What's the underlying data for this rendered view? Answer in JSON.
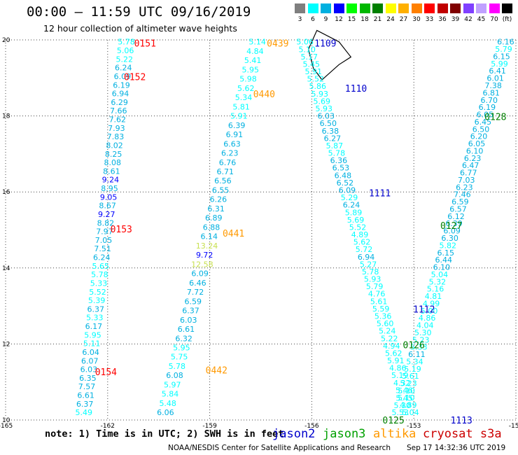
{
  "header": {
    "title": "00:00 – 11:59 UTC 09/16/2019",
    "subtitle": "12 hour collection of altimeter wave heights"
  },
  "colorbar": {
    "labels": [
      "3",
      "6",
      "9",
      "12",
      "15",
      "18",
      "21",
      "24",
      "27",
      "30",
      "33",
      "36",
      "39",
      "42",
      "45",
      "70",
      "(ft)"
    ],
    "colors": [
      "#7f7f7f",
      "#00ffff",
      "#00b0e0",
      "#0000ff",
      "#00ff00",
      "#00b800",
      "#008000",
      "#ffff00",
      "#ffb000",
      "#ff8000",
      "#ff0000",
      "#c00000",
      "#800000",
      "#8040ff",
      "#c0a0ff",
      "#ff00ff",
      "#000000"
    ]
  },
  "chart_data": {
    "type": "scatter",
    "title": "00:00 – 11:59 UTC 09/16/2019",
    "subtitle": "12 hour collection of altimeter wave heights",
    "xlim": [
      -165,
      -150
    ],
    "ylim": [
      10,
      20
    ],
    "x_ticks": [
      "-165",
      "-162",
      "-159",
      "-156",
      "-153",
      "-150"
    ],
    "y_ticks": [
      "10",
      "12",
      "14",
      "16",
      "18",
      "20"
    ],
    "grid": true,
    "units": "ft",
    "value_colors": {
      "lt6": "#00ffff",
      "lt9": "#00b0e0",
      "lt12": "#0000ff",
      "lt15": "#00ff00",
      "yellow": "#e0e000",
      "gray": "#7f7f7f"
    },
    "tracks": [
      {
        "pass": "0151",
        "satellite": "cryosat s3a",
        "color": "#ff0000",
        "start": [
          -161.45,
          19.95
        ],
        "end": [
          -162.7,
          10.2
        ],
        "label_pos": [
          -160.6,
          19.9
        ],
        "values": [
          "5.78",
          "5.06",
          "5.22",
          "6.24",
          "6.09",
          "6.19",
          "6.94",
          "6.29",
          "7.66",
          "7.62",
          "7.93",
          "7.83",
          "8.02",
          "8.25",
          "8.08",
          "8.61",
          "9.24",
          "8.95",
          "9.05",
          "8.67",
          "9.27",
          "8.82",
          "7.97",
          "7.05",
          "7.51",
          "6.24",
          "5.65",
          "5.78",
          "5.33",
          "5.52",
          "5.39",
          "6.37",
          "5.33",
          "6.17",
          "5.95",
          "5.11",
          "6.04",
          "6.07",
          "6.03",
          "6.35",
          "7.57",
          "6.61",
          "6.37",
          "5.49"
        ]
      },
      {
        "pass": "0439",
        "satellite": "altika",
        "color": "#ff9900",
        "start": [
          -157.6,
          19.95
        ],
        "end": [
          -160.3,
          10.2
        ],
        "label_pos": [
          -156.8,
          19.9
        ],
        "values": [
          "5.14",
          "4.84",
          "5.41",
          "5.95",
          "5.98",
          "5.62",
          "5.34",
          "5.81",
          "5.91",
          "6.39",
          "6.91",
          "6.63",
          "6.23",
          "6.76",
          "6.71",
          "6.56",
          "6.55",
          "6.26",
          "6.31",
          "6.89",
          "6.88",
          "6.14",
          "13.24",
          "9.72",
          "12.58",
          "6.09",
          "6.46",
          "7.72",
          "6.59",
          "6.37",
          "6.03",
          "6.61",
          "6.32",
          "5.95",
          "5.75",
          "5.78",
          "6.08",
          "5.97",
          "5.84",
          "5.48",
          "6.06"
        ]
      },
      {
        "pass": "1109",
        "satellite": "jason2",
        "color": "#0000cc",
        "start": [
          -156.2,
          19.95
        ],
        "end": [
          -153.1,
          10.2
        ],
        "label_pos": [
          -155.2,
          19.9
        ],
        "values": [
          "5.06",
          "5.10",
          "5.17",
          "5.45",
          "5.91",
          "5.52",
          "5.86",
          "5.93",
          "5.69",
          "5.93",
          "6.03",
          "6.50",
          "6.38",
          "6.27",
          "5.87",
          "5.78",
          "6.36",
          "6.53",
          "6.48",
          "6.52",
          "6.09",
          "5.29",
          "6.24",
          "5.89",
          "5.69",
          "5.52",
          "4.89",
          "5.62",
          "5.72",
          "6.94",
          "5.27",
          "5.78",
          "5.93",
          "5.79",
          "4.76",
          "5.61",
          "5.59",
          "5.36",
          "5.60",
          "5.24",
          "5.22",
          "4.94",
          "5.62",
          "5.91",
          "4.86",
          "5.19",
          "4.32",
          "5.46",
          "5.10",
          "4.89",
          "5.04"
        ]
      },
      {
        "pass": "0128",
        "satellite": "jason3",
        "color": "#008000",
        "start": [
          -150.3,
          19.95
        ],
        "end": [
          -153.4,
          10.2
        ],
        "label_pos": [
          -150.65,
          18.0
        ],
        "values": [
          "6.16",
          "5.79",
          "6.15",
          "5.99",
          "6.41",
          "6.01",
          "7.38",
          "6.81",
          "6.70",
          "6.19",
          "6.05",
          "6.45",
          "6.50",
          "6.20",
          "6.05",
          "6.10",
          "6.23",
          "6.47",
          "6.77",
          "7.03",
          "6.23",
          "7.46",
          "6.59",
          "6.57",
          "6.12",
          "6.39",
          "6.09",
          "6.30",
          "5.82",
          "6.15",
          "6.44",
          "6.10",
          "5.04",
          "5.32",
          "5.16",
          "4.81",
          "4.99",
          "5.00",
          "4.86",
          "4.04",
          "5.30",
          "5.23",
          "5.33",
          "6.11",
          "5.34",
          "5.19",
          "5.61",
          "5.23",
          "5.10",
          "5.45",
          "5.30",
          "5.53"
        ]
      }
    ],
    "pass_labels": [
      {
        "text": "0151",
        "color": "#ff0000",
        "pos": [
          -160.9,
          19.92
        ]
      },
      {
        "text": "0152",
        "color": "#ff0000",
        "pos": [
          -161.2,
          19.03
        ]
      },
      {
        "text": "0153",
        "color": "#ff0000",
        "pos": [
          -161.6,
          15.03
        ]
      },
      {
        "text": "0154",
        "color": "#ff0000",
        "pos": [
          -162.05,
          11.27
        ]
      },
      {
        "text": "0439",
        "color": "#ff9900",
        "pos": [
          -157.0,
          19.92
        ]
      },
      {
        "text": "0440",
        "color": "#ff9900",
        "pos": [
          -157.4,
          18.58
        ]
      },
      {
        "text": "0441",
        "color": "#ff9900",
        "pos": [
          -158.3,
          14.92
        ]
      },
      {
        "text": "0442",
        "color": "#ff9900",
        "pos": [
          -158.8,
          11.32
        ]
      },
      {
        "text": "1109",
        "color": "#0000cc",
        "pos": [
          -155.6,
          19.92
        ]
      },
      {
        "text": "1110",
        "color": "#0000cc",
        "pos": [
          -154.7,
          18.73
        ]
      },
      {
        "text": "1111",
        "color": "#0000cc",
        "pos": [
          -154.0,
          15.98
        ]
      },
      {
        "text": "1112",
        "color": "#0000cc",
        "pos": [
          -152.7,
          12.92
        ]
      },
      {
        "text": "1113",
        "color": "#0000cc",
        "pos": [
          -151.6,
          10.0
        ]
      },
      {
        "text": "0125",
        "color": "#008000",
        "pos": [
          -153.6,
          10.0
        ]
      },
      {
        "text": "0126",
        "color": "#008000",
        "pos": [
          -153.0,
          11.98
        ]
      },
      {
        "text": "0127",
        "color": "#008000",
        "pos": [
          -151.9,
          15.12
        ]
      },
      {
        "text": "0128",
        "color": "#008000",
        "pos": [
          -150.6,
          17.98
        ]
      }
    ]
  },
  "footer": {
    "note": "note: 1) Time is in UTC; 2) SWH is in feet",
    "satellites": [
      {
        "name": "jason2",
        "color": "#0000cc"
      },
      {
        "name": "jason3",
        "color": "#00a000"
      },
      {
        "name": "altika",
        "color": "#ff9900"
      },
      {
        "name": "cryosat s3a",
        "color": "#cc0000"
      }
    ],
    "credit": "NOAA/NESDIS Center for Satellite Applications and Research",
    "timestamp": "Sep 17 14:32:36 UTC 2019"
  }
}
